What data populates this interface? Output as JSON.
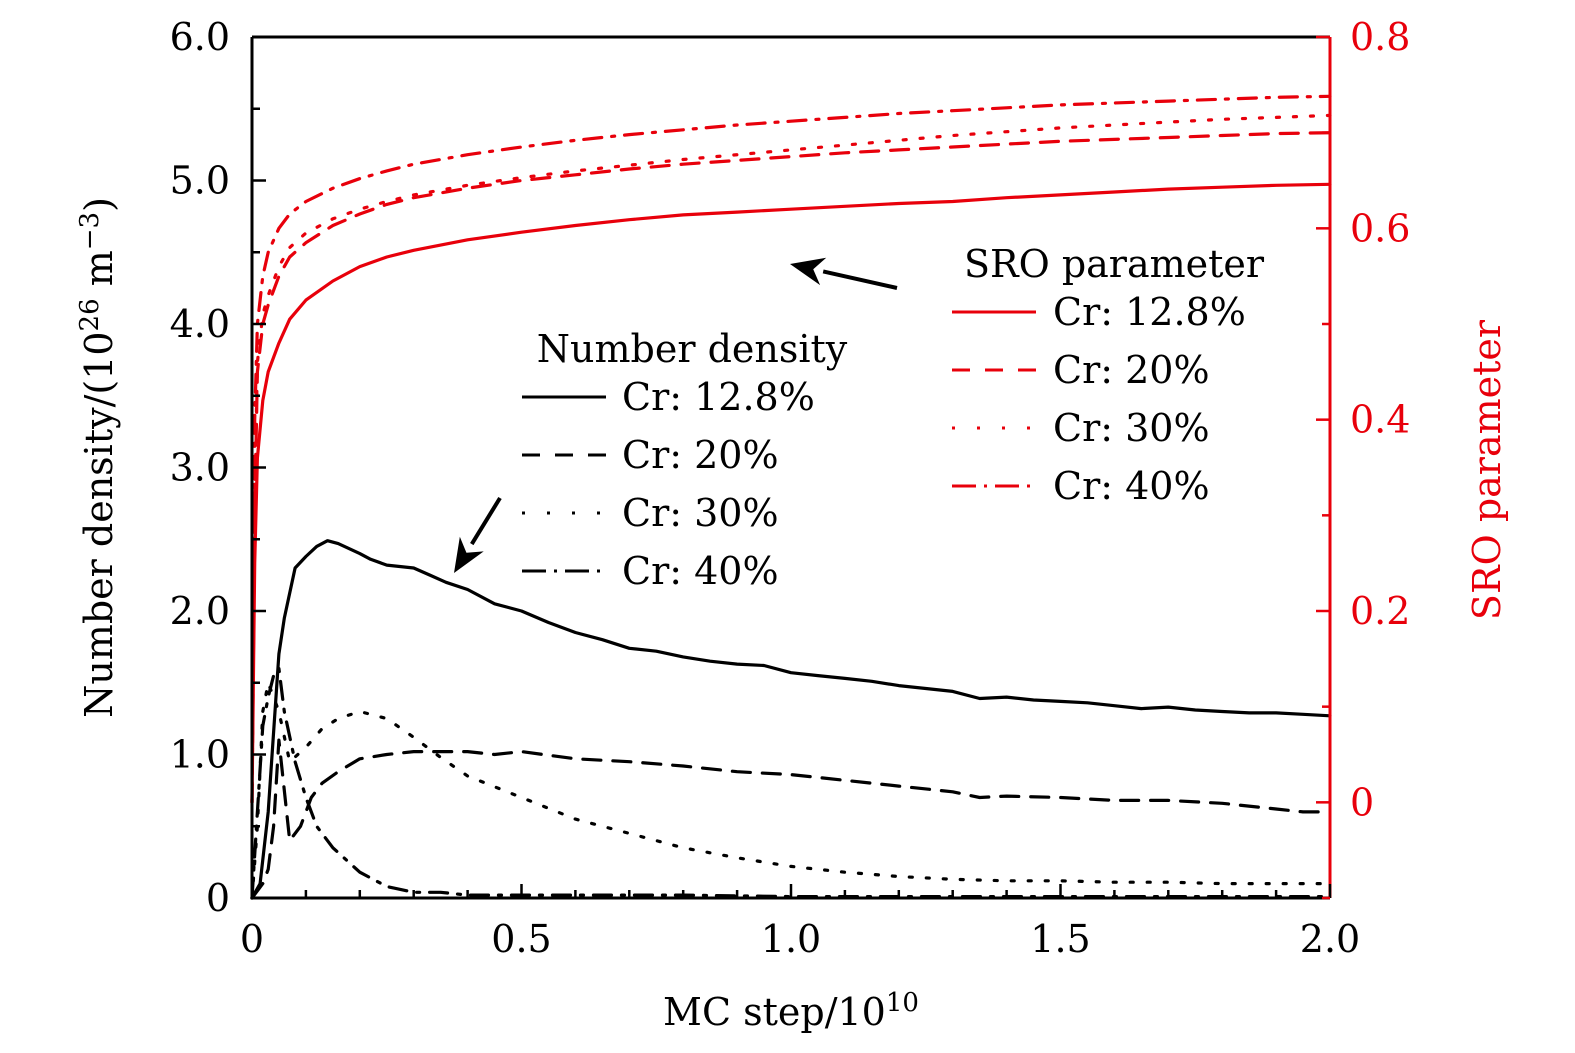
{
  "chart_data": {
    "type": "line",
    "title": "",
    "xlabel": "MC step/10^10",
    "xlabel_main": "MC step/10",
    "xlabel_sup": "10",
    "ylabel": "Number density/(10^26 m^-3)",
    "ylabel_parts": {
      "pre": "Number density/(10",
      "sup1": "26",
      "mid": " m",
      "sup2": "−3",
      "post": ")"
    },
    "y2label": "SRO parameter",
    "xlim": [
      0,
      2.0
    ],
    "ylim": [
      0,
      6.0
    ],
    "y2lim": [
      -0.1,
      0.8
    ],
    "grid": false,
    "x_ticks": [
      {
        "value": 0,
        "label": "0"
      },
      {
        "value": 0.5,
        "label": "0.5"
      },
      {
        "value": 1.0,
        "label": "1.0"
      },
      {
        "value": 1.5,
        "label": "1.5"
      },
      {
        "value": 2.0,
        "label": "2.0"
      }
    ],
    "y_ticks": [
      {
        "value": 0,
        "label": "0"
      },
      {
        "value": 1.0,
        "label": "1.0"
      },
      {
        "value": 2.0,
        "label": "2.0"
      },
      {
        "value": 3.0,
        "label": "3.0"
      },
      {
        "value": 4.0,
        "label": "4.0"
      },
      {
        "value": 5.0,
        "label": "5.0"
      },
      {
        "value": 6.0,
        "label": "6.0"
      }
    ],
    "y2_ticks": [
      {
        "value": 0,
        "label": "0"
      },
      {
        "value": 0.2,
        "label": "0.2"
      },
      {
        "value": 0.4,
        "label": "0.4"
      },
      {
        "value": 0.6,
        "label": "0.6"
      },
      {
        "value": 0.8,
        "label": "0.8"
      }
    ],
    "colors": {
      "density": "#000000",
      "sro": "#e8000b",
      "axis_right": "#e8000b"
    },
    "series": [
      {
        "name": "Number density Cr: 12.8%",
        "group": "density",
        "axis": "left",
        "style": "solid",
        "x": [
          0,
          0.015,
          0.03,
          0.05,
          0.06,
          0.08,
          0.1,
          0.12,
          0.14,
          0.16,
          0.2,
          0.22,
          0.25,
          0.3,
          0.33,
          0.36,
          0.4,
          0.45,
          0.5,
          0.55,
          0.6,
          0.65,
          0.7,
          0.75,
          0.8,
          0.85,
          0.9,
          0.95,
          1.0,
          1.05,
          1.1,
          1.15,
          1.2,
          1.25,
          1.3,
          1.35,
          1.4,
          1.45,
          1.5,
          1.55,
          1.6,
          1.65,
          1.7,
          1.75,
          1.8,
          1.85,
          1.9,
          1.95,
          2.0
        ],
        "values": [
          0,
          0.1,
          0.6,
          1.7,
          1.95,
          2.3,
          2.38,
          2.45,
          2.49,
          2.47,
          2.4,
          2.36,
          2.32,
          2.3,
          2.25,
          2.2,
          2.15,
          2.05,
          2.0,
          1.92,
          1.85,
          1.8,
          1.74,
          1.72,
          1.68,
          1.65,
          1.63,
          1.62,
          1.57,
          1.55,
          1.53,
          1.51,
          1.48,
          1.46,
          1.44,
          1.39,
          1.4,
          1.38,
          1.37,
          1.36,
          1.34,
          1.32,
          1.33,
          1.31,
          1.3,
          1.29,
          1.29,
          1.28,
          1.27
        ]
      },
      {
        "name": "Number density Cr: 20%",
        "group": "density",
        "axis": "left",
        "style": "dashed",
        "x": [
          0,
          0.01,
          0.02,
          0.03,
          0.04,
          0.05,
          0.07,
          0.09,
          0.11,
          0.13,
          0.16,
          0.2,
          0.25,
          0.3,
          0.35,
          0.4,
          0.45,
          0.5,
          0.6,
          0.7,
          0.8,
          0.9,
          1.0,
          1.1,
          1.2,
          1.3,
          1.35,
          1.4,
          1.5,
          1.6,
          1.7,
          1.8,
          1.9,
          1.95,
          2.0
        ],
        "values": [
          0,
          0.05,
          0.1,
          0.2,
          0.5,
          1.1,
          0.4,
          0.5,
          0.7,
          0.8,
          0.88,
          0.97,
          1.0,
          1.02,
          1.02,
          1.02,
          1.0,
          1.02,
          0.97,
          0.95,
          0.92,
          0.88,
          0.86,
          0.82,
          0.78,
          0.74,
          0.7,
          0.71,
          0.7,
          0.68,
          0.68,
          0.66,
          0.62,
          0.6,
          0.6
        ]
      },
      {
        "name": "Number density Cr: 30%",
        "group": "density",
        "axis": "left",
        "style": "dotted",
        "x": [
          0,
          0.01,
          0.02,
          0.03,
          0.05,
          0.07,
          0.1,
          0.13,
          0.16,
          0.2,
          0.25,
          0.3,
          0.35,
          0.4,
          0.5,
          0.6,
          0.7,
          0.8,
          0.9,
          1.0,
          1.1,
          1.2,
          1.3,
          1.4,
          1.5,
          1.6,
          1.7,
          1.8,
          1.9,
          2.0
        ],
        "values": [
          0,
          0.5,
          1.3,
          1.5,
          1.3,
          0.95,
          1.05,
          1.18,
          1.25,
          1.3,
          1.25,
          1.12,
          0.98,
          0.85,
          0.7,
          0.55,
          0.45,
          0.35,
          0.28,
          0.22,
          0.18,
          0.15,
          0.13,
          0.12,
          0.12,
          0.11,
          0.11,
          0.1,
          0.1,
          0.1
        ]
      },
      {
        "name": "Number density Cr: 40%",
        "group": "density",
        "axis": "left",
        "style": "dashdot",
        "x": [
          0,
          0.01,
          0.02,
          0.03,
          0.04,
          0.05,
          0.06,
          0.08,
          0.1,
          0.12,
          0.15,
          0.2,
          0.25,
          0.3,
          0.35,
          0.4,
          0.5,
          0.6,
          0.8,
          1.0,
          1.2,
          1.5,
          1.8,
          2.0
        ],
        "values": [
          0,
          0.6,
          1.2,
          1.4,
          1.55,
          1.6,
          1.3,
          0.95,
          0.7,
          0.5,
          0.35,
          0.18,
          0.08,
          0.04,
          0.04,
          0.02,
          0.02,
          0.02,
          0.02,
          0.01,
          0.01,
          0.01,
          0.01,
          0.01
        ]
      },
      {
        "name": "SRO parameter Cr: 12.8%",
        "group": "sro",
        "axis": "right",
        "style": "solid",
        "x": [
          0,
          0.005,
          0.01,
          0.02,
          0.03,
          0.05,
          0.07,
          0.1,
          0.15,
          0.2,
          0.25,
          0.3,
          0.4,
          0.5,
          0.6,
          0.7,
          0.8,
          0.9,
          1.0,
          1.1,
          1.2,
          1.3,
          1.4,
          1.5,
          1.6,
          1.7,
          1.8,
          1.9,
          2.0
        ],
        "values": [
          0.0,
          0.25,
          0.36,
          0.42,
          0.45,
          0.48,
          0.505,
          0.525,
          0.545,
          0.56,
          0.57,
          0.577,
          0.588,
          0.596,
          0.603,
          0.609,
          0.614,
          0.617,
          0.62,
          0.623,
          0.626,
          0.628,
          0.632,
          0.635,
          0.638,
          0.641,
          0.643,
          0.645,
          0.646
        ]
      },
      {
        "name": "SRO parameter Cr: 20%",
        "group": "sro",
        "axis": "right",
        "style": "dashed",
        "x": [
          0,
          0.005,
          0.01,
          0.02,
          0.03,
          0.05,
          0.07,
          0.1,
          0.15,
          0.2,
          0.25,
          0.3,
          0.4,
          0.5,
          0.6,
          0.7,
          0.8,
          0.9,
          1.0,
          1.1,
          1.2,
          1.3,
          1.4,
          1.5,
          1.6,
          1.7,
          1.8,
          1.9,
          2.0
        ],
        "values": [
          0.0,
          0.3,
          0.45,
          0.5,
          0.52,
          0.55,
          0.57,
          0.585,
          0.603,
          0.615,
          0.625,
          0.632,
          0.642,
          0.65,
          0.656,
          0.662,
          0.667,
          0.671,
          0.675,
          0.679,
          0.682,
          0.685,
          0.688,
          0.691,
          0.693,
          0.695,
          0.697,
          0.699,
          0.7
        ]
      },
      {
        "name": "SRO parameter Cr: 30%",
        "group": "sro",
        "axis": "right",
        "style": "dotted",
        "x": [
          0,
          0.005,
          0.01,
          0.02,
          0.03,
          0.05,
          0.07,
          0.1,
          0.15,
          0.2,
          0.25,
          0.3,
          0.4,
          0.5,
          0.6,
          0.7,
          0.8,
          0.9,
          1.0,
          1.1,
          1.2,
          1.3,
          1.4,
          1.5,
          1.6,
          1.7,
          1.8,
          1.9,
          2.0
        ],
        "values": [
          0.0,
          0.32,
          0.46,
          0.51,
          0.53,
          0.56,
          0.58,
          0.595,
          0.61,
          0.62,
          0.628,
          0.635,
          0.645,
          0.653,
          0.66,
          0.666,
          0.672,
          0.677,
          0.682,
          0.687,
          0.692,
          0.697,
          0.701,
          0.705,
          0.708,
          0.711,
          0.714,
          0.716,
          0.718
        ]
      },
      {
        "name": "SRO parameter Cr: 40%",
        "group": "sro",
        "axis": "right",
        "style": "dashdot",
        "x": [
          0,
          0.005,
          0.01,
          0.02,
          0.03,
          0.05,
          0.07,
          0.1,
          0.15,
          0.2,
          0.25,
          0.3,
          0.4,
          0.5,
          0.6,
          0.7,
          0.8,
          0.9,
          1.0,
          1.1,
          1.2,
          1.3,
          1.4,
          1.5,
          1.6,
          1.7,
          1.8,
          1.9,
          2.0
        ],
        "values": [
          0.0,
          0.4,
          0.5,
          0.55,
          0.575,
          0.6,
          0.615,
          0.628,
          0.642,
          0.652,
          0.66,
          0.667,
          0.677,
          0.685,
          0.692,
          0.698,
          0.703,
          0.708,
          0.712,
          0.716,
          0.72,
          0.723,
          0.726,
          0.729,
          0.731,
          0.733,
          0.735,
          0.737,
          0.738
        ]
      }
    ],
    "legends": [
      {
        "title": "Number density",
        "placement": "center",
        "entries": [
          {
            "label": "Cr: 12.8%",
            "style": "solid",
            "color": "#000000"
          },
          {
            "label": "Cr: 20%",
            "style": "dashed",
            "color": "#000000"
          },
          {
            "label": "Cr: 30%",
            "style": "dotted",
            "color": "#000000"
          },
          {
            "label": "Cr: 40%",
            "style": "dashdot",
            "color": "#000000"
          }
        ]
      },
      {
        "title": "SRO parameter",
        "placement": "top-right",
        "entries": [
          {
            "label": "Cr: 12.8%",
            "style": "solid",
            "color": "#e8000b"
          },
          {
            "label": "Cr: 20%",
            "style": "dashed",
            "color": "#e8000b"
          },
          {
            "label": "Cr: 30%",
            "style": "dotted",
            "color": "#e8000b"
          },
          {
            "label": "Cr: 40%",
            "style": "dashdot",
            "color": "#e8000b"
          }
        ]
      }
    ],
    "annotations": [
      {
        "type": "arrow",
        "from_legend": "SRO parameter",
        "points_to": "SRO parameter curves",
        "at": {
          "x": 1.0,
          "y2": 0.6
        }
      },
      {
        "type": "arrow",
        "from_legend": "Number density",
        "points_to": "Number density curves",
        "at": {
          "x": 0.37,
          "y": 2.2
        }
      }
    ]
  }
}
